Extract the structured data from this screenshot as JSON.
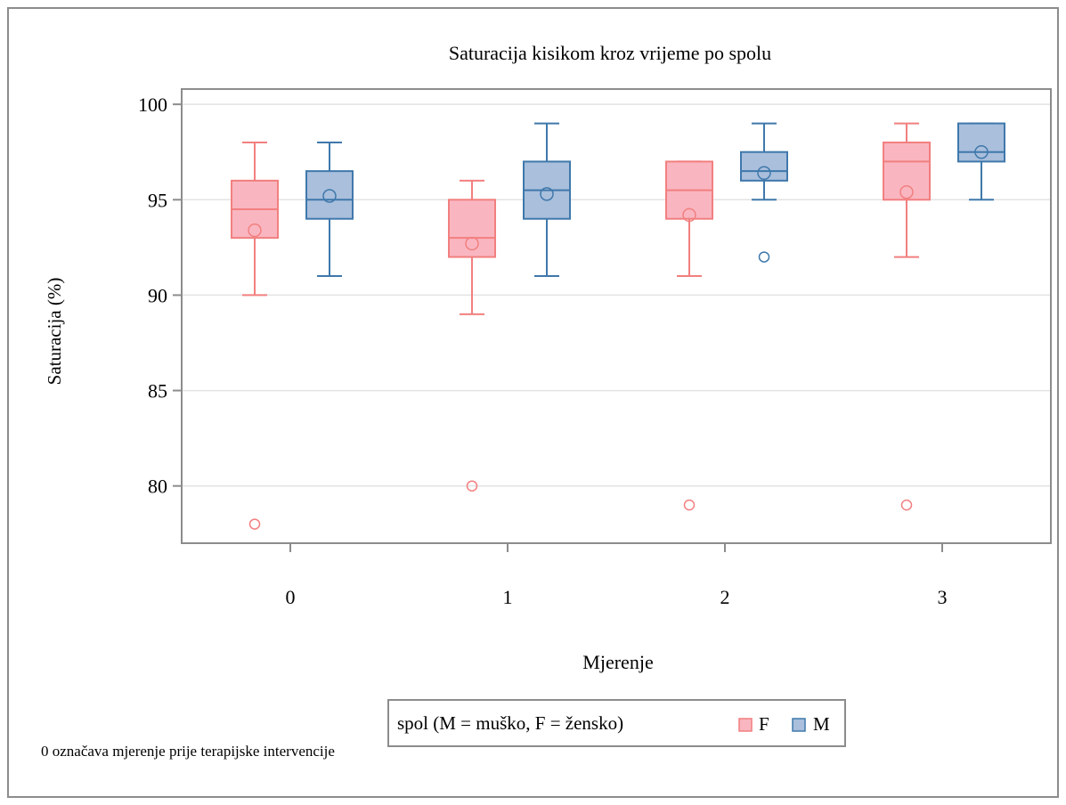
{
  "chart_data": {
    "type": "boxplot",
    "title": "Saturacija kisikom kroz vrijeme po spolu",
    "xlabel": "Mjerenje",
    "ylabel": "Saturacija (%)",
    "ylim": [
      77,
      100.8
    ],
    "y_ticks": [
      80,
      85,
      90,
      95,
      100
    ],
    "categories": [
      "0",
      "1",
      "2",
      "3"
    ],
    "grid": true,
    "legend_placement": "bottom-center",
    "legend_title": "spol (M = muško, F = žensko)",
    "series": [
      {
        "name": "F",
        "color": "#f27f7f",
        "fill": "#f9b6c1",
        "boxes": [
          {
            "category": "0",
            "whisker_low": 90,
            "q1": 93,
            "median": 94.5,
            "q3": 96,
            "whisker_high": 98,
            "mean": 93.4,
            "outliers": [
              78
            ]
          },
          {
            "category": "1",
            "whisker_low": 89,
            "q1": 92,
            "median": 93,
            "q3": 95,
            "whisker_high": 96,
            "mean": 92.7,
            "outliers": [
              80
            ]
          },
          {
            "category": "2",
            "whisker_low": 91,
            "q1": 94,
            "median": 95.5,
            "q3": 97,
            "whisker_high": 97,
            "mean": 94.2,
            "outliers": [
              79
            ]
          },
          {
            "category": "3",
            "whisker_low": 92,
            "q1": 95,
            "median": 97,
            "q3": 98,
            "whisker_high": 99,
            "mean": 95.4,
            "outliers": [
              79
            ]
          }
        ]
      },
      {
        "name": "M",
        "color": "#3f78ab",
        "fill": "#a9bfdc",
        "boxes": [
          {
            "category": "0",
            "whisker_low": 91,
            "q1": 94,
            "median": 95,
            "q3": 96.5,
            "whisker_high": 98,
            "mean": 95.2,
            "outliers": []
          },
          {
            "category": "1",
            "whisker_low": 91,
            "q1": 94,
            "median": 95.5,
            "q3": 97,
            "whisker_high": 99,
            "mean": 95.3,
            "outliers": []
          },
          {
            "category": "2",
            "whisker_low": 95,
            "q1": 96,
            "median": 96.5,
            "q3": 97.5,
            "whisker_high": 99,
            "mean": 96.4,
            "outliers": [
              92
            ]
          },
          {
            "category": "3",
            "whisker_low": 95,
            "q1": 97,
            "median": 97.5,
            "q3": 99,
            "whisker_high": 99,
            "mean": 97.5,
            "outliers": []
          }
        ]
      }
    ]
  },
  "footnote": "0 označava mjerenje prije terapijske intervencije"
}
